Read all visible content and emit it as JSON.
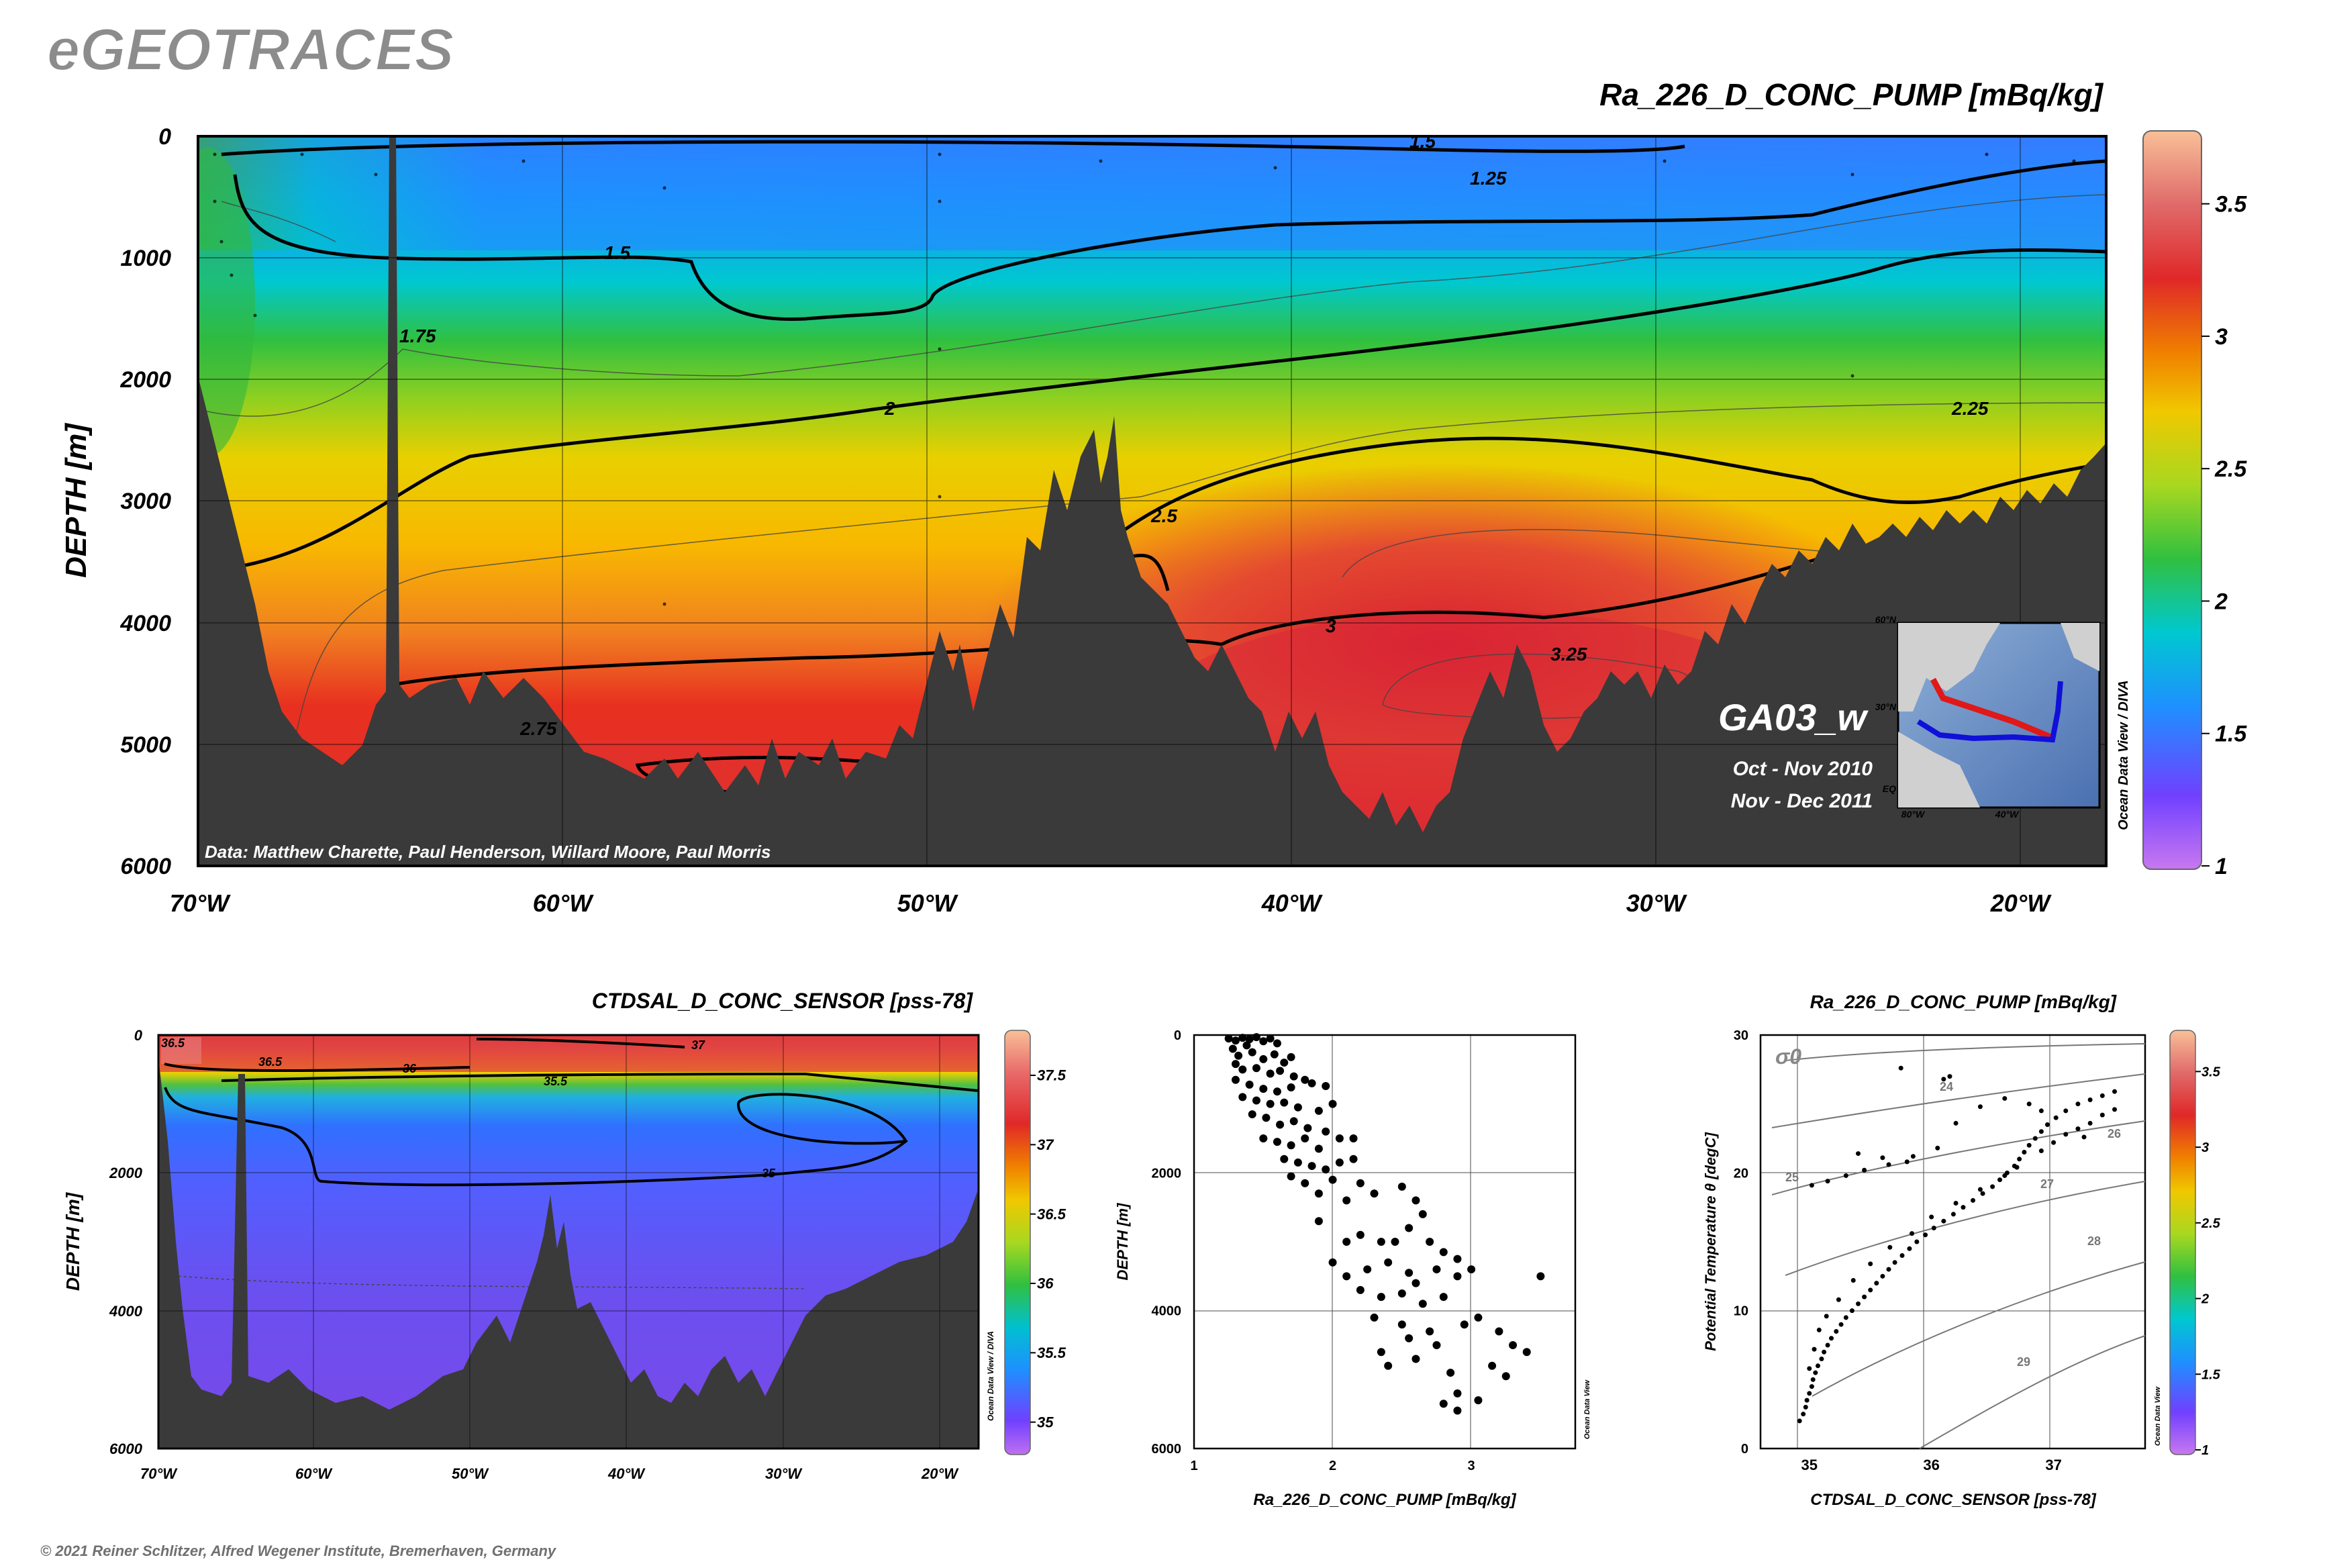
{
  "brand": "eGEOTRACES",
  "copyright": "© 2021 Reiner Schlitzer, Alfred Wegener Institute, Bremerhaven, Germany",
  "odv_label": "Ocean Data View / DIVA",
  "odv_label_short": "Ocean Data View",
  "colors": {
    "land": "#3a3a3a",
    "frame": "#000000",
    "contour": "#000000"
  },
  "main_section": {
    "title": "Ra_226_D_CONC_PUMP [mBq/kg]",
    "ylabel": "DEPTH [m]",
    "yticks": [
      "0",
      "1000",
      "2000",
      "3000",
      "4000",
      "5000",
      "6000"
    ],
    "xticks": [
      "70°W",
      "60°W",
      "50°W",
      "40°W",
      "30°W",
      "20°W"
    ],
    "contour_labels": [
      "1.5",
      "1.25",
      "1.5",
      "1.75",
      "2",
      "2.25",
      "2.5",
      "3",
      "3.25",
      "2.75"
    ],
    "credit": "Data: Matthew Charette, Paul Henderson, Willard Moore, Paul Morris",
    "cruise": "GA03_w",
    "period1": "Oct - Nov 2010",
    "period2": "Nov - Dec 2011",
    "inset_lat_ticks": [
      "60°N",
      "30°N",
      "EQ"
    ],
    "inset_lon_ticks": [
      "80°W",
      "40°W"
    ],
    "colorbar_ticks": [
      "3.5",
      "3",
      "2.5",
      "2",
      "1.5",
      "1"
    ],
    "colorbar_range": [
      1,
      3.75
    ]
  },
  "sal_section": {
    "title": "CTDSAL_D_CONC_SENSOR [pss-78]",
    "ylabel": "DEPTH [m]",
    "yticks": [
      "0",
      "2000",
      "4000",
      "6000"
    ],
    "xticks": [
      "70°W",
      "60°W",
      "50°W",
      "40°W",
      "30°W",
      "20°W"
    ],
    "contour_labels": [
      "36.5",
      "36.5",
      "36",
      "37",
      "35.5",
      "35"
    ],
    "colorbar_ticks": [
      "37.5",
      "37",
      "36.5",
      "36",
      "35.5",
      "35"
    ],
    "colorbar_range": [
      34.8,
      37.8
    ]
  },
  "chart_data": [
    {
      "type": "scatter",
      "id": "ra-vs-depth",
      "xlabel": "Ra_226_D_CONC_PUMP [mBq/kg]",
      "ylabel": "DEPTH [m]",
      "xlim": [
        1,
        3.75
      ],
      "ylim": [
        6000,
        0
      ],
      "xticks": [
        "1",
        "2",
        "3"
      ],
      "yticks": [
        "0",
        "2000",
        "4000",
        "6000"
      ],
      "grid": true,
      "points": [
        [
          1.25,
          50
        ],
        [
          1.3,
          80
        ],
        [
          1.35,
          40
        ],
        [
          1.4,
          60
        ],
        [
          1.45,
          30
        ],
        [
          1.5,
          90
        ],
        [
          1.55,
          50
        ],
        [
          1.6,
          120
        ],
        [
          1.38,
          150
        ],
        [
          1.28,
          200
        ],
        [
          1.32,
          300
        ],
        [
          1.42,
          250
        ],
        [
          1.5,
          350
        ],
        [
          1.58,
          280
        ],
        [
          1.65,
          400
        ],
        [
          1.7,
          320
        ],
        [
          1.3,
          420
        ],
        [
          1.35,
          500
        ],
        [
          1.45,
          480
        ],
        [
          1.55,
          560
        ],
        [
          1.62,
          520
        ],
        [
          1.72,
          600
        ],
        [
          1.8,
          650
        ],
        [
          1.3,
          650
        ],
        [
          1.4,
          720
        ],
        [
          1.5,
          780
        ],
        [
          1.6,
          820
        ],
        [
          1.7,
          760
        ],
        [
          1.85,
          700
        ],
        [
          1.95,
          740
        ],
        [
          1.35,
          900
        ],
        [
          1.45,
          950
        ],
        [
          1.55,
          1000
        ],
        [
          1.65,
          980
        ],
        [
          1.75,
          1050
        ],
        [
          1.9,
          1100
        ],
        [
          2.0,
          1000
        ],
        [
          1.42,
          1150
        ],
        [
          1.52,
          1200
        ],
        [
          1.62,
          1300
        ],
        [
          1.72,
          1250
        ],
        [
          1.82,
          1350
        ],
        [
          1.95,
          1400
        ],
        [
          1.5,
          1500
        ],
        [
          1.6,
          1550
        ],
        [
          1.7,
          1600
        ],
        [
          1.8,
          1500
        ],
        [
          1.9,
          1650
        ],
        [
          2.05,
          1500
        ],
        [
          2.15,
          1500
        ],
        [
          1.65,
          1800
        ],
        [
          1.75,
          1850
        ],
        [
          1.85,
          1900
        ],
        [
          1.95,
          1950
        ],
        [
          2.05,
          1850
        ],
        [
          2.15,
          1800
        ],
        [
          1.7,
          2050
        ],
        [
          1.8,
          2150
        ],
        [
          2.0,
          2100
        ],
        [
          2.2,
          2150
        ],
        [
          1.9,
          2300
        ],
        [
          2.1,
          2400
        ],
        [
          2.3,
          2300
        ],
        [
          2.5,
          2200
        ],
        [
          2.6,
          2400
        ],
        [
          2.65,
          2600
        ],
        [
          1.9,
          2700
        ],
        [
          2.1,
          3000
        ],
        [
          2.2,
          2900
        ],
        [
          2.35,
          3000
        ],
        [
          2.45,
          3000
        ],
        [
          2.55,
          2800
        ],
        [
          2.7,
          3000
        ],
        [
          2.8,
          3150
        ],
        [
          2.9,
          3250
        ],
        [
          2.0,
          3300
        ],
        [
          2.1,
          3500
        ],
        [
          2.25,
          3400
        ],
        [
          2.4,
          3300
        ],
        [
          2.55,
          3450
        ],
        [
          2.6,
          3600
        ],
        [
          2.75,
          3400
        ],
        [
          2.9,
          3500
        ],
        [
          3.0,
          3400
        ],
        [
          3.5,
          3500
        ],
        [
          2.2,
          3700
        ],
        [
          2.35,
          3800
        ],
        [
          2.5,
          3750
        ],
        [
          2.65,
          3900
        ],
        [
          2.8,
          3800
        ],
        [
          2.3,
          4100
        ],
        [
          2.5,
          4200
        ],
        [
          2.7,
          4300
        ],
        [
          2.95,
          4200
        ],
        [
          3.05,
          4100
        ],
        [
          3.2,
          4300
        ],
        [
          2.35,
          4600
        ],
        [
          2.55,
          4400
        ],
        [
          2.75,
          4500
        ],
        [
          3.3,
          4500
        ],
        [
          3.4,
          4600
        ],
        [
          2.4,
          4800
        ],
        [
          2.6,
          4700
        ],
        [
          2.85,
          4900
        ],
        [
          3.15,
          4800
        ],
        [
          3.25,
          4950
        ],
        [
          2.9,
          5200
        ],
        [
          3.05,
          5300
        ],
        [
          2.8,
          5350
        ],
        [
          2.9,
          5450
        ]
      ]
    },
    {
      "type": "scatter",
      "id": "theta-s",
      "title": "Ra_226_D_CONC_PUMP [mBq/kg]",
      "xlabel": "CTDSAL_D_CONC_SENSOR [pss-78]",
      "ylabel": "Potential Temperature θ [degC]",
      "xlim": [
        34.6,
        37.75
      ],
      "ylim": [
        0,
        30
      ],
      "xticks": [
        "35",
        "36",
        "37"
      ],
      "yticks": [
        "0",
        "10",
        "20",
        "30"
      ],
      "grid": true,
      "isopycnal_label": "σ0",
      "isopycnals": [
        "24",
        "25",
        "26",
        "27",
        "28",
        "29"
      ],
      "colorbar_ticks": [
        "3.5",
        "3",
        "2.5",
        "2",
        "1.5",
        "1"
      ],
      "colorbar_range": [
        1,
        3.75
      ],
      "points": [
        [
          34.92,
          2.0
        ],
        [
          34.95,
          2.5
        ],
        [
          34.97,
          3.0
        ],
        [
          34.98,
          3.5
        ],
        [
          35.0,
          4.0
        ],
        [
          35.02,
          4.5
        ],
        [
          35.03,
          5.0
        ],
        [
          35.05,
          5.5
        ],
        [
          35.07,
          6.0
        ],
        [
          35.1,
          6.5
        ],
        [
          35.12,
          7.0
        ],
        [
          35.15,
          7.5
        ],
        [
          35.18,
          8.0
        ],
        [
          35.22,
          8.5
        ],
        [
          35.26,
          9.0
        ],
        [
          35.3,
          9.5
        ],
        [
          35.35,
          10.0
        ],
        [
          35.4,
          10.5
        ],
        [
          35.45,
          11.0
        ],
        [
          35.5,
          11.5
        ],
        [
          35.55,
          12.0
        ],
        [
          35.6,
          12.5
        ],
        [
          35.65,
          13.0
        ],
        [
          35.7,
          13.5
        ],
        [
          35.76,
          14.0
        ],
        [
          35.82,
          14.5
        ],
        [
          35.88,
          15.0
        ],
        [
          35.95,
          15.5
        ],
        [
          36.02,
          16.0
        ],
        [
          36.1,
          16.5
        ],
        [
          36.18,
          17.0
        ],
        [
          36.26,
          17.5
        ],
        [
          36.34,
          18.0
        ],
        [
          36.42,
          18.5
        ],
        [
          36.5,
          19.0
        ],
        [
          36.56,
          19.5
        ],
        [
          36.62,
          20.0
        ],
        [
          36.68,
          20.5
        ],
        [
          36.72,
          21.0
        ],
        [
          36.76,
          21.5
        ],
        [
          36.8,
          22.0
        ],
        [
          36.85,
          22.5
        ],
        [
          36.9,
          23.0
        ],
        [
          36.95,
          23.5
        ],
        [
          37.02,
          24.0
        ],
        [
          37.1,
          24.5
        ],
        [
          37.2,
          25.0
        ],
        [
          37.3,
          25.3
        ],
        [
          37.4,
          25.6
        ],
        [
          37.5,
          25.9
        ],
        [
          37.1,
          22.8
        ],
        [
          37.2,
          23.2
        ],
        [
          37.3,
          23.6
        ],
        [
          37.4,
          24.2
        ],
        [
          37.5,
          24.6
        ],
        [
          36.9,
          24.5
        ],
        [
          36.8,
          25.0
        ],
        [
          36.6,
          25.4
        ],
        [
          36.4,
          24.8
        ],
        [
          36.2,
          23.6
        ],
        [
          36.05,
          21.8
        ],
        [
          35.85,
          21.2
        ],
        [
          35.65,
          20.6
        ],
        [
          35.45,
          20.2
        ],
        [
          35.3,
          19.8
        ],
        [
          35.15,
          19.4
        ],
        [
          35.02,
          19.1
        ],
        [
          35.4,
          21.4
        ],
        [
          35.6,
          21.1
        ],
        [
          35.8,
          20.8
        ],
        [
          35.75,
          27.6
        ],
        [
          36.1,
          26.8
        ],
        [
          36.15,
          27.0
        ],
        [
          35.0,
          5.8
        ],
        [
          35.04,
          7.2
        ],
        [
          35.08,
          8.6
        ],
        [
          35.14,
          9.6
        ],
        [
          35.24,
          10.8
        ],
        [
          35.36,
          12.2
        ],
        [
          35.5,
          13.4
        ],
        [
          35.66,
          14.6
        ],
        [
          35.84,
          15.6
        ],
        [
          36.0,
          16.8
        ],
        [
          36.2,
          17.8
        ],
        [
          36.4,
          18.8
        ],
        [
          36.6,
          19.8
        ],
        [
          36.7,
          20.4
        ],
        [
          36.9,
          21.6
        ],
        [
          37.0,
          22.2
        ],
        [
          37.25,
          22.6
        ]
      ]
    }
  ]
}
